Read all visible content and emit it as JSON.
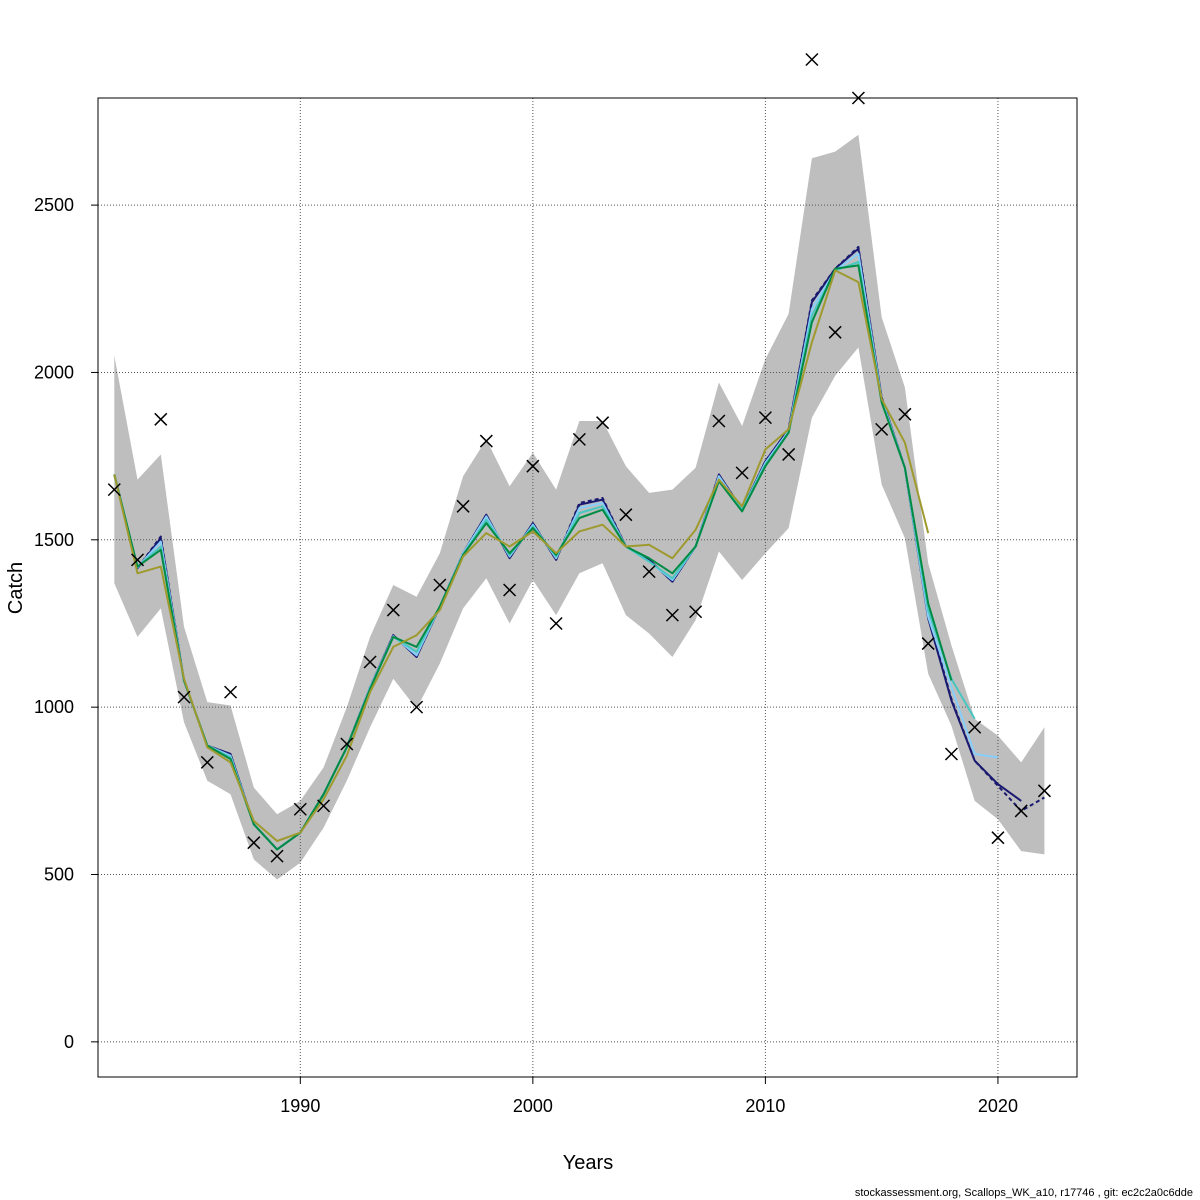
{
  "chart_data": {
    "type": "line",
    "title": "",
    "xlabel": "Years",
    "ylabel": "Catch",
    "xlim": [
      1981.3,
      2023.4
    ],
    "ylim": [
      -105,
      2820
    ],
    "x_ticks": [
      1990,
      2000,
      2010,
      2020
    ],
    "y_ticks": [
      0,
      500,
      1000,
      1500,
      2000,
      2500
    ],
    "grid": true,
    "legend": "none",
    "footer": "stockassessment.org, Scallops_WK_a10, r17746 , git: ec2c2a0c6dde",
    "band": {
      "color": "#bebebe",
      "x": [
        1982,
        1983,
        1984,
        1985,
        1986,
        1987,
        1988,
        1989,
        1990,
        1991,
        1992,
        1993,
        1994,
        1995,
        1996,
        1997,
        1998,
        1999,
        2000,
        2001,
        2002,
        2003,
        2004,
        2005,
        2006,
        2007,
        2008,
        2009,
        2010,
        2011,
        2012,
        2013,
        2014,
        2015,
        2016,
        2017,
        2018,
        2019,
        2020,
        2021,
        2022
      ],
      "upper": [
        2050,
        1680,
        1755,
        1240,
        1015,
        1005,
        760,
        680,
        720,
        820,
        1000,
        1210,
        1365,
        1330,
        1460,
        1690,
        1800,
        1660,
        1760,
        1650,
        1855,
        1855,
        1720,
        1640,
        1650,
        1715,
        1970,
        1840,
        2040,
        2175,
        2640,
        2660,
        2710,
        2165,
        1955,
        1430,
        1185,
        965,
        915,
        835,
        940
      ],
      "lower": [
        1370,
        1210,
        1295,
        955,
        780,
        740,
        545,
        485,
        535,
        640,
        780,
        940,
        1085,
        995,
        1130,
        1295,
        1385,
        1250,
        1380,
        1275,
        1400,
        1430,
        1275,
        1220,
        1150,
        1260,
        1465,
        1380,
        1460,
        1535,
        1865,
        1990,
        2075,
        1665,
        1505,
        1100,
        945,
        720,
        665,
        570,
        560
      ]
    },
    "series": [
      {
        "color": "#191970",
        "dashed": true,
        "x": [
          1982,
          1983,
          1984,
          1985,
          1986,
          1987,
          1988,
          1989,
          1990,
          1991,
          1992,
          1993,
          1994,
          1995,
          1996,
          1997,
          1998,
          1999,
          2000,
          2001,
          2002,
          2003,
          2004,
          2005,
          2006,
          2007,
          2008,
          2009,
          2010,
          2011,
          2012,
          2013,
          2014,
          2015,
          2016,
          2017,
          2018,
          2019,
          2020,
          2021,
          2022
        ],
        "values": [
          1695,
          1415,
          1510,
          1080,
          885,
          860,
          650,
          575,
          625,
          740,
          880,
          1060,
          1215,
          1150,
          1300,
          1460,
          1575,
          1445,
          1550,
          1440,
          1610,
          1625,
          1480,
          1440,
          1375,
          1480,
          1695,
          1590,
          1735,
          1830,
          2215,
          2310,
          2375,
          1925,
          1715,
          1270,
          1025,
          840,
          765,
          690,
          730
        ]
      },
      {
        "color": "#191970",
        "x": [
          1982,
          1983,
          1984,
          1985,
          1986,
          1987,
          1988,
          1989,
          1990,
          1991,
          1992,
          1993,
          1994,
          1995,
          1996,
          1997,
          1998,
          1999,
          2000,
          2001,
          2002,
          2003,
          2004,
          2005,
          2006,
          2007,
          2008,
          2009,
          2010,
          2011,
          2012,
          2013,
          2014,
          2015,
          2016,
          2017,
          2018,
          2019,
          2020,
          2021
        ],
        "values": [
          1695,
          1415,
          1505,
          1080,
          885,
          860,
          650,
          575,
          625,
          740,
          880,
          1060,
          1215,
          1150,
          1300,
          1460,
          1575,
          1445,
          1550,
          1440,
          1605,
          1620,
          1480,
          1440,
          1375,
          1480,
          1695,
          1590,
          1735,
          1830,
          2210,
          2310,
          2370,
          1925,
          1715,
          1265,
          1020,
          840,
          770,
          720
        ]
      },
      {
        "color": "#87cefa",
        "x": [
          1982,
          1983,
          1984,
          1985,
          1986,
          1987,
          1988,
          1989,
          1990,
          1991,
          1992,
          1993,
          1994,
          1995,
          1996,
          1997,
          1998,
          1999,
          2000,
          2001,
          2002,
          2003,
          2004,
          2005,
          2006,
          2007,
          2008,
          2009,
          2010,
          2011,
          2012,
          2013,
          2014,
          2015,
          2016,
          2017,
          2018,
          2019,
          2020
        ],
        "values": [
          1695,
          1418,
          1495,
          1080,
          885,
          855,
          650,
          575,
          625,
          740,
          880,
          1060,
          1212,
          1155,
          1300,
          1460,
          1570,
          1450,
          1545,
          1445,
          1595,
          1610,
          1480,
          1435,
          1380,
          1480,
          1690,
          1590,
          1730,
          1825,
          2190,
          2305,
          2355,
          1920,
          1715,
          1270,
          1060,
          860,
          850
        ]
      },
      {
        "color": "#48c7c0",
        "x": [
          1982,
          1983,
          1984,
          1985,
          1986,
          1987,
          1988,
          1989,
          1990,
          1991,
          1992,
          1993,
          1994,
          1995,
          1996,
          1997,
          1998,
          1999,
          2000,
          2001,
          2002,
          2003,
          2004,
          2005,
          2006,
          2007,
          2008,
          2009,
          2010,
          2011,
          2012,
          2013,
          2014,
          2015,
          2016,
          2017,
          2018,
          2019
        ],
        "values": [
          1695,
          1420,
          1480,
          1080,
          885,
          850,
          650,
          575,
          625,
          740,
          880,
          1055,
          1210,
          1165,
          1300,
          1455,
          1560,
          1455,
          1540,
          1450,
          1580,
          1600,
          1480,
          1435,
          1385,
          1480,
          1680,
          1590,
          1725,
          1820,
          2170,
          2305,
          2330,
          1915,
          1715,
          1290,
          1085,
          965
        ]
      },
      {
        "color": "#008b45",
        "x": [
          1982,
          1983,
          1984,
          1985,
          1986,
          1987,
          1988,
          1989,
          1990,
          1991,
          1992,
          1993,
          1994,
          1995,
          1996,
          1997,
          1998,
          1999,
          2000,
          2001,
          2002,
          2003,
          2004,
          2005,
          2006,
          2007,
          2008,
          2009,
          2010,
          2011,
          2012,
          2013,
          2014,
          2015,
          2016,
          2017,
          2018
        ],
        "values": [
          1695,
          1420,
          1470,
          1080,
          885,
          845,
          650,
          575,
          625,
          740,
          880,
          1055,
          1210,
          1180,
          1300,
          1455,
          1550,
          1460,
          1535,
          1455,
          1565,
          1590,
          1480,
          1445,
          1400,
          1480,
          1675,
          1585,
          1720,
          1820,
          2150,
          2310,
          2320,
          1910,
          1715,
          1310,
          1080
        ]
      },
      {
        "color": "#9e9a2e",
        "x": [
          1982,
          1983,
          1984,
          1985,
          1986,
          1987,
          1988,
          1989,
          1990,
          1991,
          1992,
          1993,
          1994,
          1995,
          1996,
          1997,
          1998,
          1999,
          2000,
          2001,
          2002,
          2003,
          2004,
          2005,
          2006,
          2007,
          2008,
          2009,
          2010,
          2011,
          2012,
          2013,
          2014,
          2015,
          2016,
          2017
        ],
        "values": [
          1695,
          1400,
          1420,
          1085,
          880,
          835,
          660,
          600,
          625,
          725,
          855,
          1045,
          1180,
          1215,
          1290,
          1450,
          1520,
          1480,
          1525,
          1460,
          1525,
          1545,
          1480,
          1485,
          1445,
          1530,
          1680,
          1600,
          1770,
          1830,
          2090,
          2305,
          2270,
          1920,
          1790,
          1520
        ]
      }
    ],
    "observed": {
      "marker": "x",
      "x": [
        1982,
        1983,
        1984,
        1985,
        1986,
        1987,
        1988,
        1989,
        1990,
        1991,
        1992,
        1993,
        1994,
        1995,
        1996,
        1997,
        1998,
        1999,
        2000,
        2001,
        2002,
        2003,
        2004,
        2005,
        2006,
        2007,
        2008,
        2009,
        2010,
        2011,
        2012,
        2013,
        2014,
        2015,
        2016,
        2017,
        2018,
        2019,
        2020,
        2021,
        2022
      ],
      "values": [
        1650,
        1440,
        1860,
        1030,
        835,
        1045,
        595,
        555,
        695,
        705,
        890,
        1135,
        1290,
        1000,
        1365,
        1600,
        1795,
        1350,
        1720,
        1250,
        1800,
        1850,
        1575,
        1405,
        1275,
        1285,
        1855,
        1700,
        1865,
        1755,
        2935,
        2120,
        2820,
        1830,
        1875,
        1190,
        860,
        940,
        610,
        690,
        750
      ]
    }
  }
}
